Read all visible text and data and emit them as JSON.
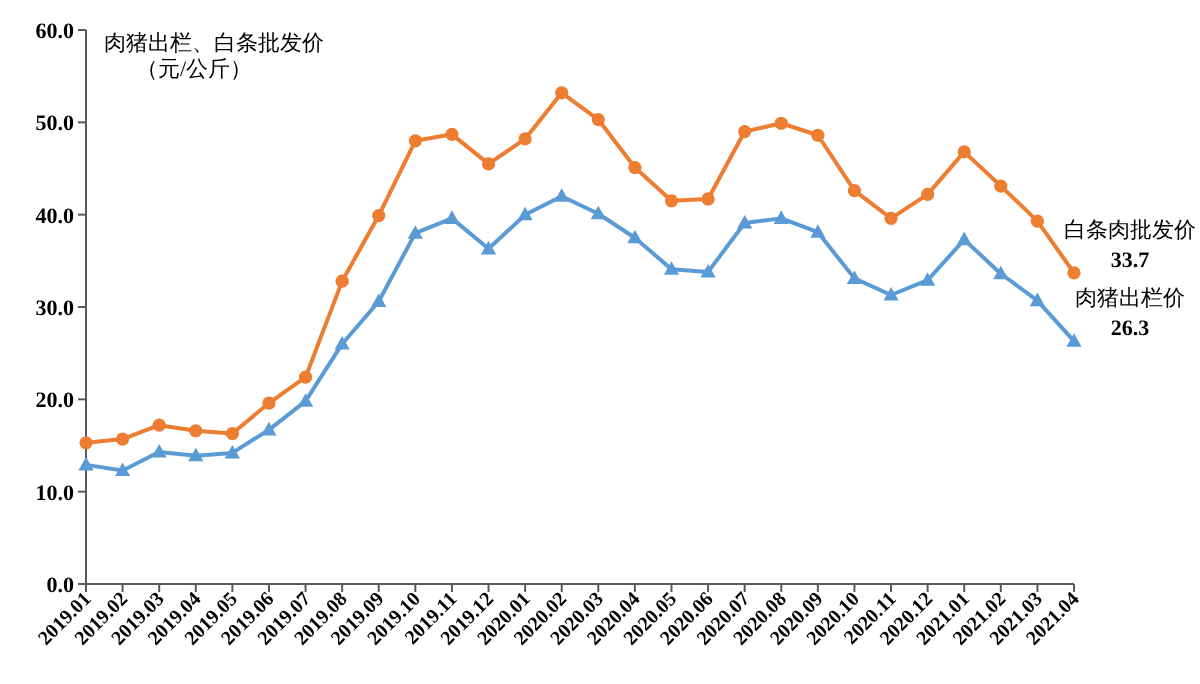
{
  "chart_data": {
    "type": "line",
    "title": "肉猪出栏、白条批发价",
    "subtitle": "（元/公斤）",
    "categories": [
      "2019.01",
      "2019.02",
      "2019.03",
      "2019.04",
      "2019.05",
      "2019.06",
      "2019.07",
      "2019.08",
      "2019.09",
      "2019.10",
      "2019.11",
      "2019.12",
      "2020.01",
      "2020.02",
      "2020.03",
      "2020.04",
      "2020.05",
      "2020.06",
      "2020.07",
      "2020.08",
      "2020.09",
      "2020.10",
      "2020.11",
      "2020.12",
      "2021.01",
      "2021.02",
      "2021.03",
      "2021.04"
    ],
    "series": [
      {
        "name": "白条肉批发价",
        "color": "#ed7d31",
        "marker": "circle",
        "values": [
          15.3,
          15.7,
          17.2,
          16.6,
          16.3,
          19.6,
          22.4,
          32.8,
          39.9,
          48.0,
          48.7,
          45.5,
          48.2,
          53.2,
          50.3,
          45.1,
          41.5,
          41.7,
          49.0,
          49.9,
          48.6,
          42.6,
          39.6,
          42.2,
          46.8,
          43.1,
          39.3,
          33.7
        ],
        "value_labels": [
          null,
          null,
          null,
          null,
          null,
          null,
          null,
          null,
          null,
          null,
          null,
          null,
          null,
          null,
          null,
          null,
          null,
          null,
          null,
          null,
          null,
          null,
          null,
          null,
          null,
          null,
          null,
          "33.7"
        ]
      },
      {
        "name": "肉猪出栏价",
        "color": "#5b9bd5",
        "marker": "triangle",
        "values": [
          12.9,
          12.3,
          14.3,
          13.9,
          14.2,
          16.7,
          19.8,
          26.0,
          30.6,
          38.0,
          39.6,
          36.3,
          40.0,
          42.0,
          40.1,
          37.5,
          34.1,
          33.8,
          39.1,
          39.6,
          38.1,
          33.1,
          31.3,
          32.9,
          37.3,
          33.6,
          30.7,
          26.3
        ],
        "value_labels": [
          null,
          null,
          null,
          null,
          null,
          null,
          null,
          null,
          null,
          null,
          null,
          null,
          null,
          null,
          null,
          null,
          null,
          null,
          null,
          null,
          null,
          null,
          null,
          null,
          null,
          null,
          null,
          "26.3"
        ]
      }
    ],
    "ylim": [
      0,
      60
    ],
    "yticks": [
      {
        "value": 0,
        "label": "0.0"
      },
      {
        "value": 10,
        "label": "10.0"
      },
      {
        "value": 20,
        "label": "20.0"
      },
      {
        "value": 30,
        "label": "30.0"
      },
      {
        "value": 40,
        "label": "40.0"
      },
      {
        "value": 50,
        "label": "50.0"
      },
      {
        "value": 60,
        "label": "60.0"
      }
    ],
    "grid": false,
    "legend": false,
    "line_style": "solid"
  }
}
